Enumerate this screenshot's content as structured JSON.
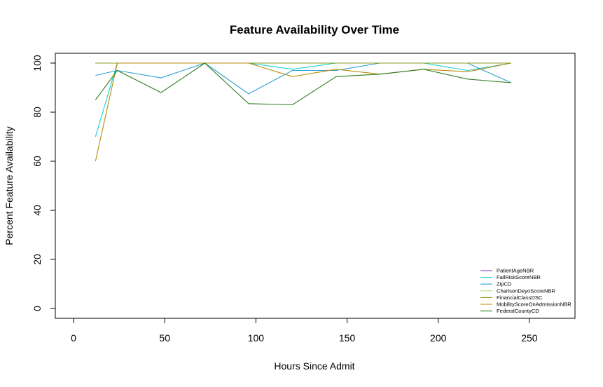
{
  "chart_data": {
    "type": "line",
    "title": "Feature Availability Over Time",
    "xlabel": "Hours Since Admit",
    "ylabel": "Percent Feature Availability",
    "xlim": [
      -10,
      275
    ],
    "ylim": [
      -4,
      104
    ],
    "xticks": [
      0,
      50,
      100,
      150,
      200,
      250
    ],
    "yticks": [
      0,
      20,
      40,
      60,
      80,
      100
    ],
    "grid": false,
    "legend_position": "bottom-right",
    "x": [
      12,
      24,
      48,
      72,
      96,
      120,
      144,
      168,
      192,
      216,
      240
    ],
    "series": [
      {
        "name": "PatientAgeNBR",
        "color": "#7b2fbe",
        "values": [
          100,
          100,
          100,
          100,
          100,
          100,
          100,
          100,
          100,
          100,
          100
        ]
      },
      {
        "name": "FallRiskScoreNBR",
        "color": "#17d0d0",
        "values": [
          70,
          100,
          100,
          100,
          100,
          97.5,
          100,
          100,
          100,
          97,
          100
        ]
      },
      {
        "name": "ZipCD",
        "color": "#2a9fd6",
        "values": [
          95,
          97,
          94,
          100,
          87.5,
          97,
          97,
          100,
          100,
          100,
          92
        ]
      },
      {
        "name": "CharlsonDeyoScoreNBR",
        "color": "#b4e07a",
        "values": [
          100,
          100,
          100,
          100,
          100,
          100,
          100,
          100,
          100,
          100,
          100
        ]
      },
      {
        "name": "FinancialClassDSC",
        "color": "#8c9a1e",
        "values": [
          100,
          100,
          100,
          100,
          100,
          100,
          100,
          100,
          100,
          100,
          100
        ]
      },
      {
        "name": "MobilityScoreOnAdmissionNBR",
        "color": "#b88a0a",
        "values": [
          60,
          100,
          100,
          100,
          100,
          94.5,
          97.5,
          95.5,
          97.5,
          96.5,
          100
        ]
      },
      {
        "name": "FederalCountyCD",
        "color": "#2f7d23",
        "values": [
          85,
          97,
          88,
          100,
          83.5,
          83,
          94.5,
          95.5,
          97.5,
          93.5,
          92
        ]
      }
    ]
  }
}
